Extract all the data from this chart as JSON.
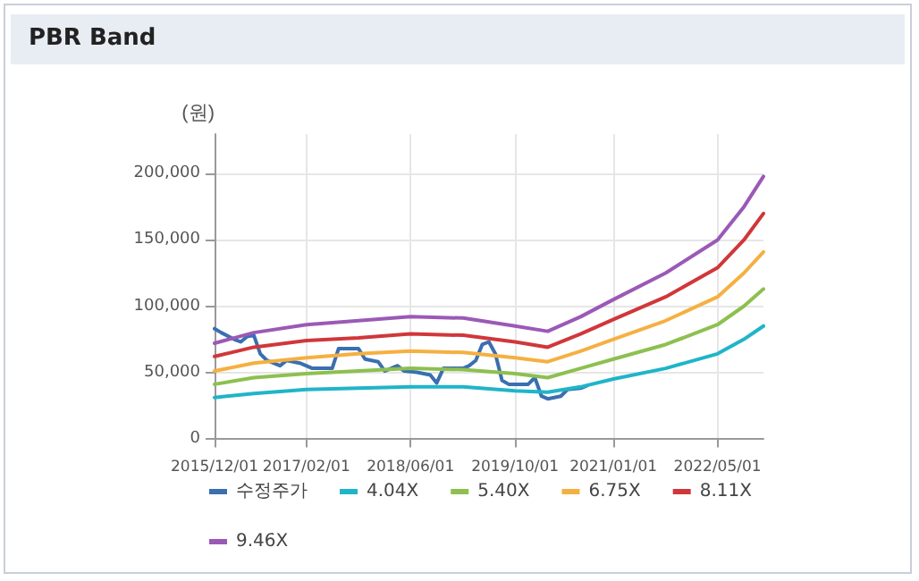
{
  "chart_data": {
    "type": "line",
    "title": "PBR Band",
    "ylabel": "(원)",
    "xlim": [
      "2015-12-01",
      "2022-12-01"
    ],
    "xticks": [
      {
        "value": "2015-12-01",
        "label": "2015/12/01"
      },
      {
        "value": "2017-02-01",
        "label": "2017/02/01"
      },
      {
        "value": "2018-06-01",
        "label": "2018/06/01"
      },
      {
        "value": "2019-10-01",
        "label": "2019/10/01"
      },
      {
        "value": "2021-01-01",
        "label": "2021/01/01"
      },
      {
        "value": "2022-05-01",
        "label": "2022/05/01"
      }
    ],
    "ylim": [
      -5000,
      230000
    ],
    "yticks": [
      {
        "value": 0,
        "label": "0"
      },
      {
        "value": 50000,
        "label": "50,000"
      },
      {
        "value": 100000,
        "label": "100,000"
      },
      {
        "value": 150000,
        "label": "150,000"
      },
      {
        "value": 200000,
        "label": "200,000"
      }
    ],
    "grid": true,
    "legend": "bottom",
    "marker": "none",
    "line_style": "solid",
    "series": [
      {
        "name": "수정주가",
        "color": "#3a6fb0",
        "x": [
          "2015-12-01",
          "2016-01-01",
          "2016-03-01",
          "2016-04-01",
          "2016-05-01",
          "2016-06-01",
          "2016-07-01",
          "2016-08-01",
          "2016-10-01",
          "2016-11-01",
          "2017-01-01",
          "2017-03-01",
          "2017-06-01",
          "2017-07-01",
          "2017-10-01",
          "2017-11-01",
          "2018-01-01",
          "2018-02-01",
          "2018-04-01",
          "2018-05-01",
          "2018-07-01",
          "2018-09-01",
          "2018-10-01",
          "2018-11-01",
          "2019-02-01",
          "2019-03-01",
          "2019-04-01",
          "2019-05-01",
          "2019-06-01",
          "2019-07-01",
          "2019-08-01",
          "2019-09-01",
          "2019-12-01",
          "2020-01-01",
          "2020-02-01",
          "2020-03-01",
          "2020-05-01",
          "2020-06-01",
          "2020-08-01",
          "2020-09-01"
        ],
        "values": [
          83000,
          80000,
          75000,
          73000,
          77000,
          78000,
          64000,
          59000,
          55000,
          59000,
          57000,
          53000,
          53000,
          68000,
          68000,
          60000,
          58000,
          51000,
          55000,
          51000,
          50000,
          48000,
          42000,
          53000,
          53000,
          55000,
          59000,
          71000,
          73000,
          64000,
          44000,
          41000,
          41000,
          46000,
          32000,
          30000,
          32000,
          37000,
          38000,
          40000
        ]
      },
      {
        "name": "4.04X",
        "color": "#1fb5c8",
        "x": [
          "2015-12-01",
          "2016-06-01",
          "2017-02-01",
          "2017-10-01",
          "2018-06-01",
          "2019-02-01",
          "2019-10-01",
          "2020-03-01",
          "2020-08-01",
          "2021-01-01",
          "2021-09-01",
          "2022-05-01",
          "2022-09-01",
          "2022-12-01"
        ],
        "values": [
          31000,
          34000,
          37000,
          38000,
          39000,
          39000,
          36000,
          35000,
          39000,
          45000,
          53000,
          64000,
          75000,
          85000
        ]
      },
      {
        "name": "5.40X",
        "color": "#8dc04f",
        "x": [
          "2015-12-01",
          "2016-06-01",
          "2017-02-01",
          "2017-10-01",
          "2018-06-01",
          "2019-02-01",
          "2019-10-01",
          "2020-03-01",
          "2020-08-01",
          "2021-01-01",
          "2021-09-01",
          "2022-05-01",
          "2022-09-01",
          "2022-12-01"
        ],
        "values": [
          41000,
          46000,
          49000,
          51000,
          53000,
          52000,
          49000,
          46000,
          53000,
          60000,
          71000,
          86000,
          100000,
          113000
        ]
      },
      {
        "name": "6.75X",
        "color": "#f5b041",
        "x": [
          "2015-12-01",
          "2016-06-01",
          "2017-02-01",
          "2017-10-01",
          "2018-06-01",
          "2019-02-01",
          "2019-10-01",
          "2020-03-01",
          "2020-08-01",
          "2021-01-01",
          "2021-09-01",
          "2022-05-01",
          "2022-09-01",
          "2022-12-01"
        ],
        "values": [
          51000,
          57000,
          61000,
          64000,
          66000,
          65000,
          61000,
          58000,
          66000,
          75000,
          89000,
          107000,
          125000,
          141000
        ]
      },
      {
        "name": "8.11X",
        "color": "#d0373a",
        "x": [
          "2015-12-01",
          "2016-06-01",
          "2017-02-01",
          "2017-10-01",
          "2018-06-01",
          "2019-02-01",
          "2019-10-01",
          "2020-03-01",
          "2020-08-01",
          "2021-01-01",
          "2021-09-01",
          "2022-05-01",
          "2022-09-01",
          "2022-12-01"
        ],
        "values": [
          62000,
          69000,
          74000,
          76000,
          79000,
          78000,
          73000,
          69000,
          79000,
          90000,
          107000,
          129000,
          150000,
          170000
        ]
      },
      {
        "name": "9.46X",
        "color": "#9b59b6",
        "x": [
          "2015-12-01",
          "2016-06-01",
          "2017-02-01",
          "2017-10-01",
          "2018-06-01",
          "2019-02-01",
          "2019-10-01",
          "2020-03-01",
          "2020-08-01",
          "2021-01-01",
          "2021-09-01",
          "2022-05-01",
          "2022-09-01",
          "2022-12-01"
        ],
        "values": [
          72000,
          80000,
          86000,
          89000,
          92000,
          91000,
          85000,
          81000,
          92000,
          105000,
          125000,
          150000,
          175000,
          198000
        ]
      }
    ]
  }
}
